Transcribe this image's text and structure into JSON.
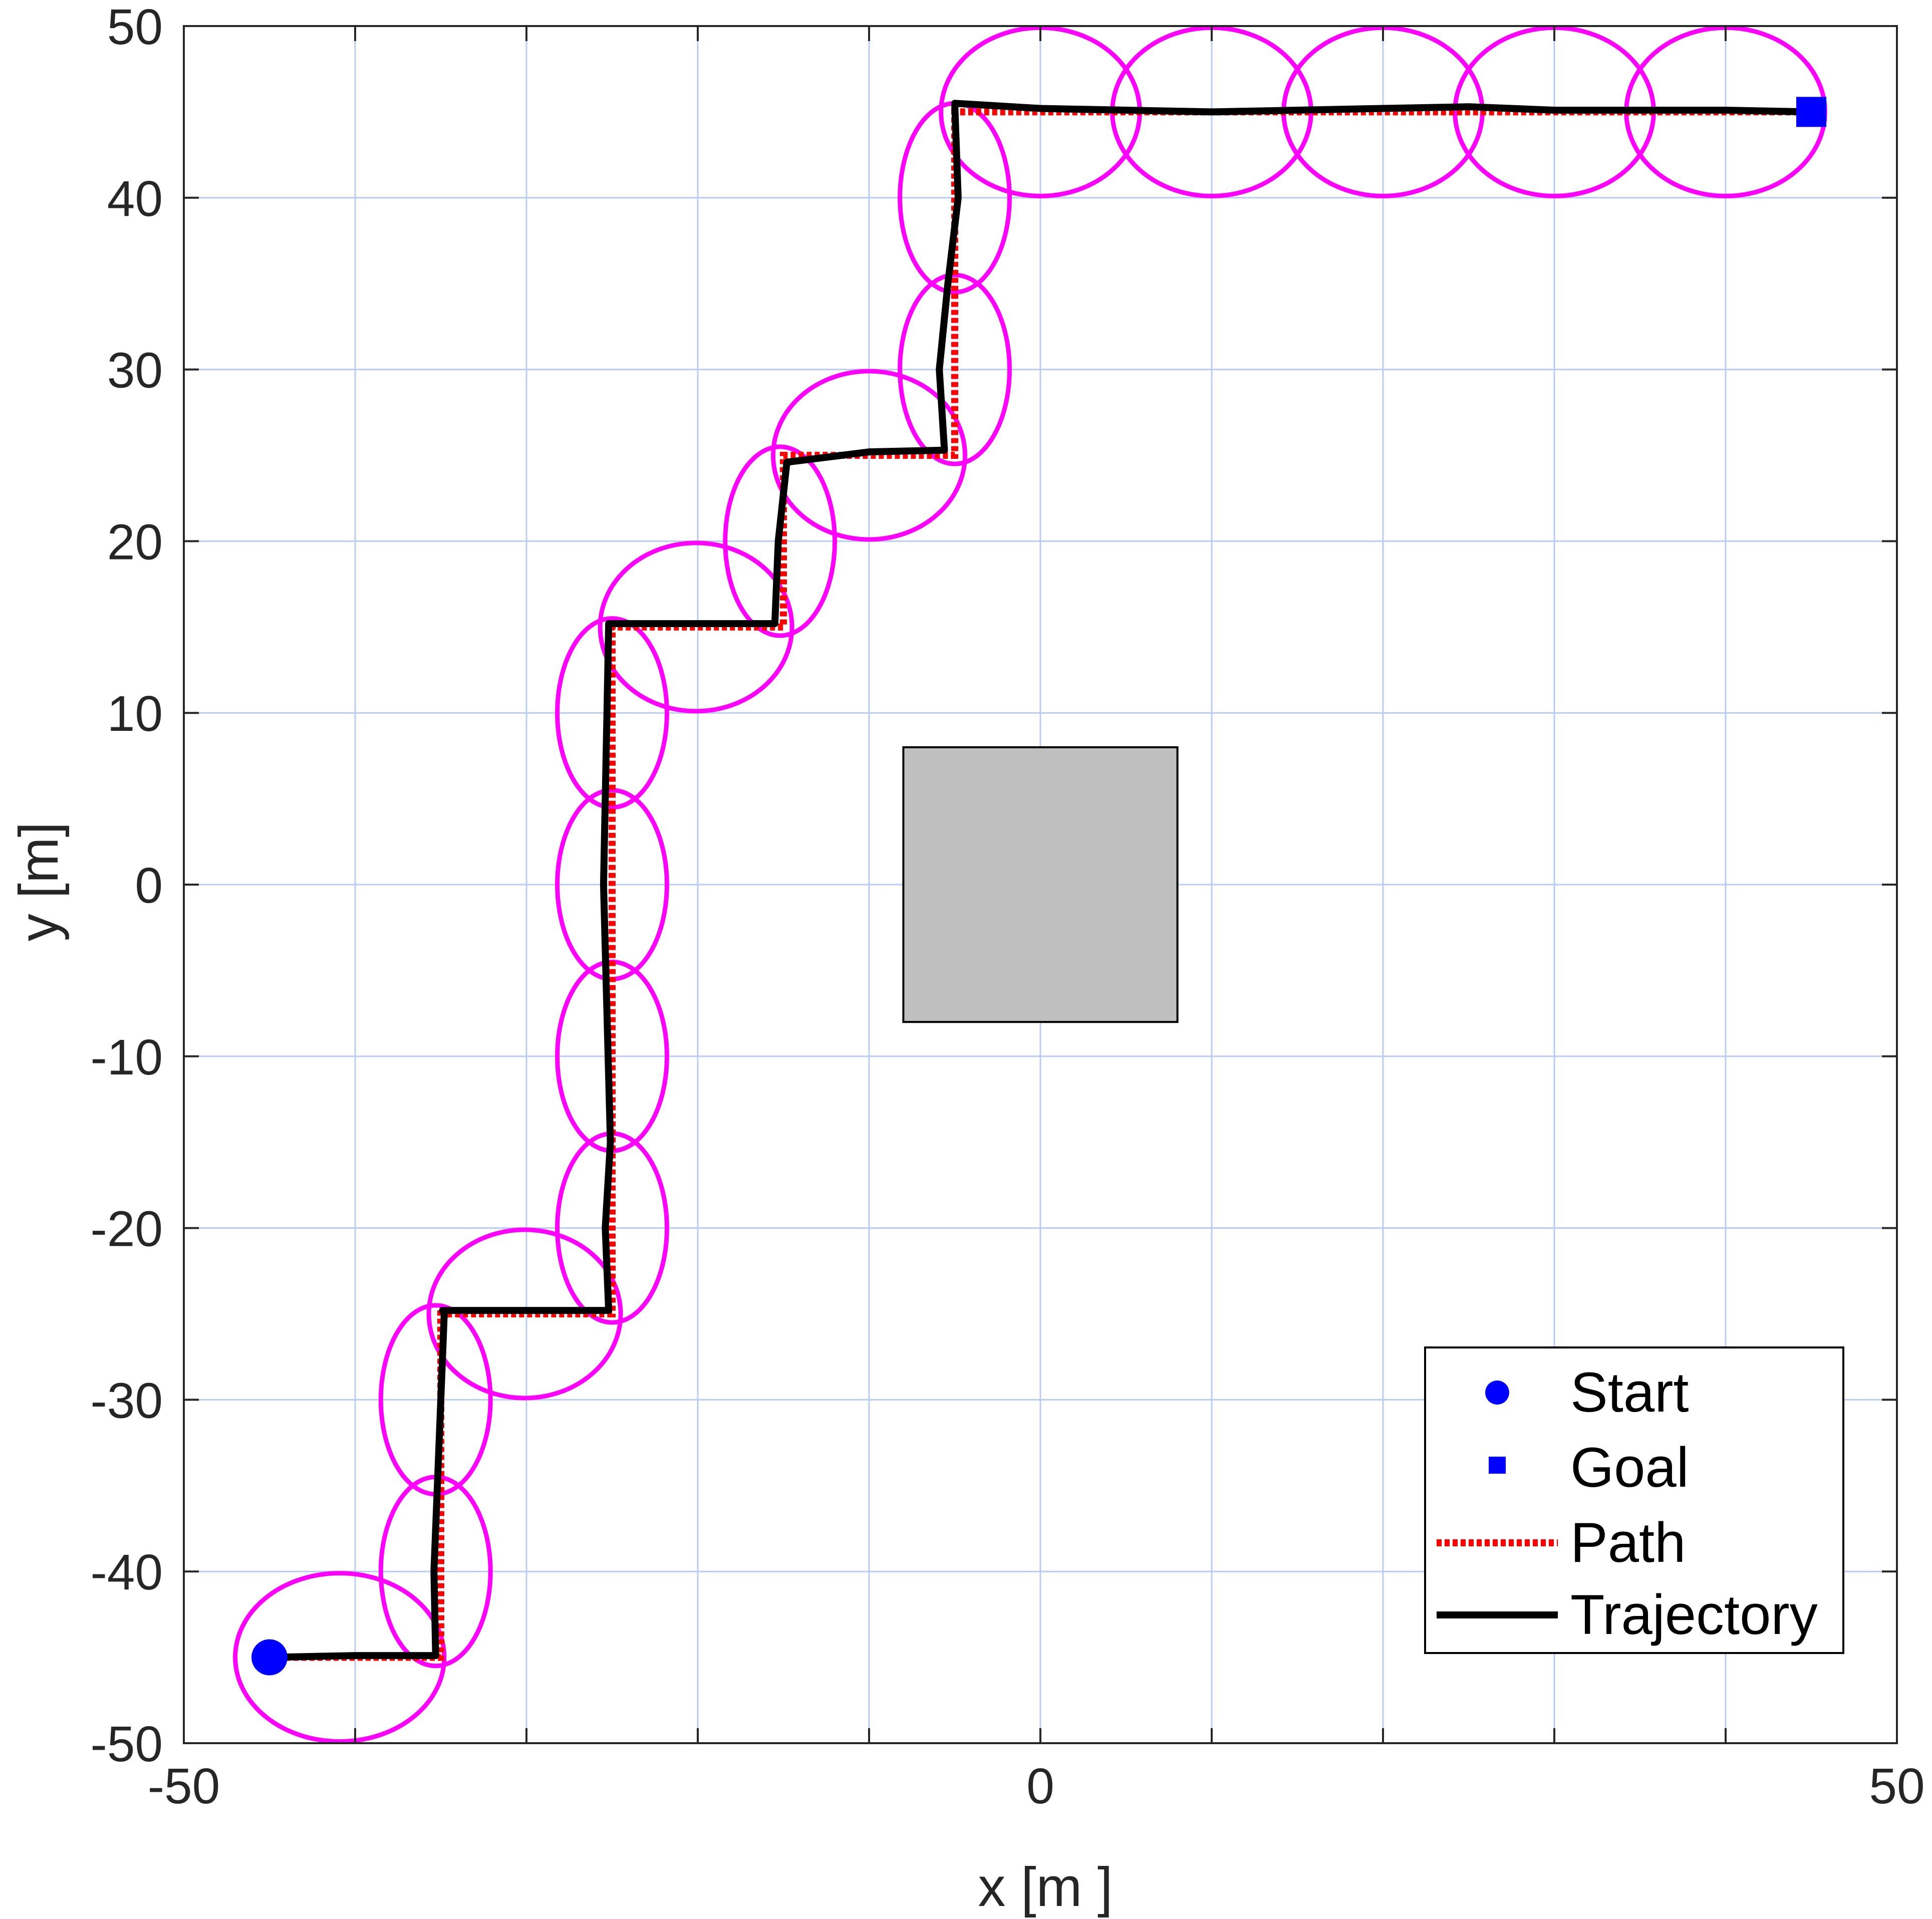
{
  "chart_data": {
    "type": "line",
    "title": "",
    "xlabel": "x [m ]",
    "ylabel": "y [m]",
    "xlim": [
      -50,
      50
    ],
    "ylim": [
      -50,
      50
    ],
    "xticks": [
      -50,
      0,
      50
    ],
    "yticks": [
      -50,
      -40,
      -30,
      -20,
      -10,
      0,
      10,
      20,
      30,
      40,
      50
    ],
    "xtick_labels": [
      "-50",
      "0",
      "50"
    ],
    "ytick_labels": [
      "-50",
      "-40",
      "-30",
      "-20",
      "-10",
      "0",
      "10",
      "20",
      "30",
      "40",
      "50"
    ],
    "grid": true,
    "grid_step": 10,
    "legend_position": "bottom-right",
    "start": {
      "label": "Start",
      "x": -45,
      "y": -45,
      "color": "#0000ff",
      "marker": "circle"
    },
    "goal": {
      "label": "Goal",
      "x": 45,
      "y": 45,
      "color": "#0000ff",
      "marker": "square"
    },
    "path": {
      "label": "Path",
      "color": "#ff0000",
      "style": "dotted",
      "x": [
        -45,
        -35,
        -35,
        -25,
        -25,
        -15,
        -15,
        -5,
        -5,
        5,
        15,
        25,
        35,
        45
      ],
      "y": [
        -45,
        -45,
        -25,
        -25,
        15,
        15,
        25,
        25,
        45,
        45,
        45,
        45,
        45,
        45
      ]
    },
    "trajectory": {
      "label": "Trajectory",
      "color": "#000000",
      "style": "solid",
      "x": [
        -45,
        -40,
        -35.3,
        -35.4,
        -35,
        -34.8,
        -34.9,
        -25.2,
        -25.4,
        -25.1,
        -25.5,
        -25.3,
        -25.2,
        -15.5,
        -15.3,
        -14.8,
        -10,
        -5.6,
        -5.9,
        -5.4,
        -4.8,
        -5,
        0,
        10,
        20,
        25,
        30,
        40,
        45
      ],
      "y": [
        -45,
        -44.9,
        -44.9,
        -40,
        -30,
        -25,
        -24.8,
        -24.8,
        -20,
        -15,
        0,
        10,
        15.2,
        15.2,
        20,
        24.6,
        25.2,
        25.3,
        30,
        35,
        40,
        45.5,
        45.2,
        45,
        45.2,
        45.3,
        45.1,
        45.1,
        45
      ]
    },
    "uncertainty_ellipses": {
      "color": "#ff00ff",
      "items": [
        {
          "cx": -40.9,
          "cy": -45,
          "rx": 6.1,
          "ry": 4.9
        },
        {
          "cx": -35.3,
          "cy": -40,
          "rx": 3.2,
          "ry": 5.5
        },
        {
          "cx": -35.3,
          "cy": -30,
          "rx": 3.2,
          "ry": 5.5
        },
        {
          "cx": -30.1,
          "cy": -25,
          "rx": 5.6,
          "ry": 4.9
        },
        {
          "cx": -25,
          "cy": -20,
          "rx": 3.2,
          "ry": 5.5
        },
        {
          "cx": -25,
          "cy": -10,
          "rx": 3.2,
          "ry": 5.5
        },
        {
          "cx": -25,
          "cy": 0,
          "rx": 3.2,
          "ry": 5.5
        },
        {
          "cx": -25,
          "cy": 10,
          "rx": 3.2,
          "ry": 5.5
        },
        {
          "cx": -20.1,
          "cy": 15,
          "rx": 5.6,
          "ry": 4.9
        },
        {
          "cx": -15.2,
          "cy": 20,
          "rx": 3.2,
          "ry": 5.5
        },
        {
          "cx": -10,
          "cy": 25,
          "rx": 5.6,
          "ry": 4.9
        },
        {
          "cx": -5,
          "cy": 30,
          "rx": 3.2,
          "ry": 5.5
        },
        {
          "cx": -5,
          "cy": 40,
          "rx": 3.2,
          "ry": 5.5
        },
        {
          "cx": 0,
          "cy": 45,
          "rx": 5.8,
          "ry": 4.9
        },
        {
          "cx": 10,
          "cy": 45,
          "rx": 5.8,
          "ry": 4.9
        },
        {
          "cx": 20,
          "cy": 45,
          "rx": 5.8,
          "ry": 4.9
        },
        {
          "cx": 30,
          "cy": 45,
          "rx": 5.8,
          "ry": 4.9
        },
        {
          "cx": 40,
          "cy": 45,
          "rx": 5.8,
          "ry": 4.9
        }
      ]
    },
    "obstacle": {
      "x_min": -8,
      "x_max": 8,
      "y_min": -8,
      "y_max": 8,
      "fill": "#bfbfbf",
      "stroke": "#000000"
    },
    "grid_color": "#b8ccf5"
  }
}
